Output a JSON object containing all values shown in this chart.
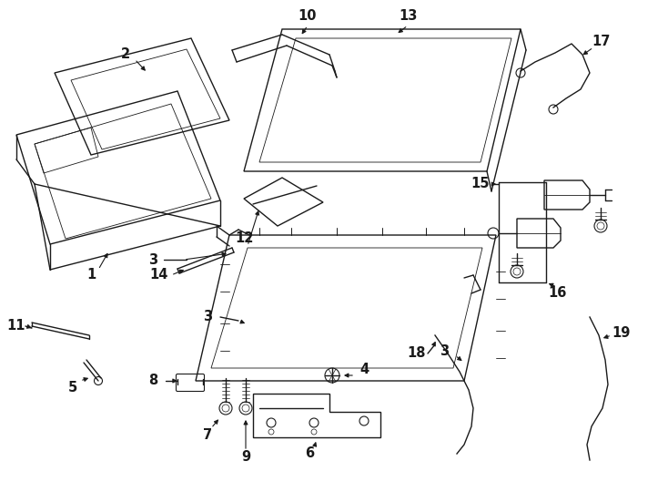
{
  "bg": "#ffffff",
  "lc": "#1a1a1a",
  "lw": 1.0
}
